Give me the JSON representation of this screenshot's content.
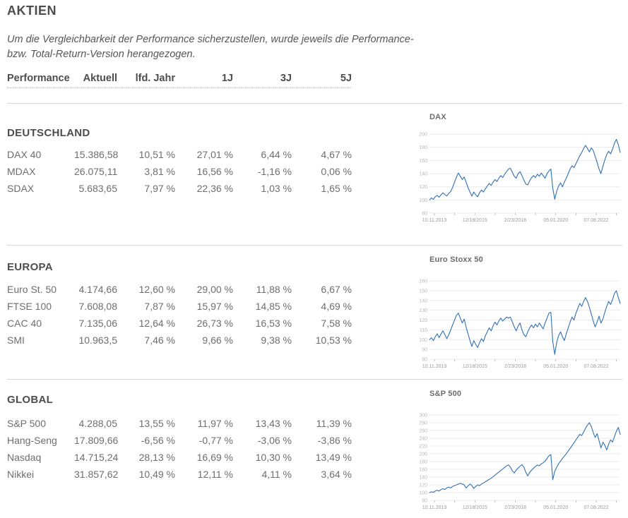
{
  "page": {
    "title": "AKTIEN",
    "subtitle_line1": "Um die Vergleichbarkeit der Performance sicherzustellen, wurde jeweils die Performance-",
    "subtitle_line2": "bzw. Total-Return-Version herangezogen."
  },
  "table": {
    "headers": [
      "Performance",
      "Aktuell",
      "lfd. Jahr",
      "1J",
      "3J",
      "5J"
    ],
    "sections": [
      {
        "heading": "DEUTSCHLAND",
        "rows": [
          {
            "name": "DAX 40",
            "values": [
              "15.386,58",
              "10,51 %",
              "27,01 %",
              "6,44 %",
              "4,67 %"
            ]
          },
          {
            "name": "MDAX",
            "values": [
              "26.075,11",
              "3,81 %",
              "16,56 %",
              "-1,16 %",
              "0,06 %"
            ]
          },
          {
            "name": "SDAX",
            "values": [
              "5.683,65",
              "7,97 %",
              "22,36 %",
              "1,03 %",
              "1,65 %"
            ]
          }
        ]
      },
      {
        "heading": "EUROPA",
        "rows": [
          {
            "name": "Euro St. 50",
            "values": [
              "4.174,66",
              "12,60 %",
              "29,00 %",
              "11,88 %",
              "6,67 %"
            ]
          },
          {
            "name": "FTSE 100",
            "values": [
              "7.608,08",
              "7,87 %",
              "15,97 %",
              "14,85 %",
              "4,69 %"
            ]
          },
          {
            "name": "CAC 40",
            "values": [
              "7.135,06",
              "12,64 %",
              "26,73 %",
              "16,53 %",
              "7,58 %"
            ]
          },
          {
            "name": "SMI",
            "values": [
              "10.963,5",
              "7,46 %",
              "9,66 %",
              "9,38 %",
              "10,53 %"
            ]
          }
        ]
      },
      {
        "heading": "GLOBAL",
        "rows": [
          {
            "name": "S&P 500",
            "values": [
              "4.288,05",
              "13,55 %",
              "11,97 %",
              "13,43 %",
              "11,39 %"
            ]
          },
          {
            "name": "Hang-Seng",
            "values": [
              "17.809,66",
              "-6,56 %",
              "-0,77 %",
              "-3,06 %",
              "-3,86 %"
            ]
          },
          {
            "name": "Nasdaq",
            "values": [
              "14.715,24",
              "28,13 %",
              "16,69 %",
              "10,30 %",
              "13,49 %"
            ]
          },
          {
            "name": "Nikkei",
            "values": [
              "31.857,62",
              "10,49 %",
              "12,11 %",
              "4,11 %",
              "3,64 %"
            ]
          }
        ]
      }
    ]
  },
  "chart_data": [
    {
      "type": "line",
      "title": "DAX",
      "line_color": "#3070b4",
      "ylim": [
        80,
        200
      ],
      "yticks": [
        200,
        180,
        160,
        140,
        120,
        100,
        80
      ],
      "xticklabels": [
        "10.11.2013",
        "12/18/2015",
        "2/23/2018",
        "05.01.2020",
        "07.08.2022"
      ],
      "grid": true,
      "legend": "none",
      "values": [
        100,
        103,
        101,
        105,
        107,
        104,
        108,
        111,
        108,
        106,
        110,
        113,
        119,
        127,
        135,
        141,
        136,
        131,
        135,
        127,
        119,
        112,
        106,
        112,
        108,
        105,
        111,
        115,
        112,
        117,
        121,
        125,
        122,
        127,
        131,
        128,
        133,
        137,
        134,
        139,
        143,
        147,
        148,
        142,
        136,
        133,
        140,
        143,
        137,
        130,
        124,
        123,
        129,
        134,
        137,
        134,
        139,
        136,
        141,
        137,
        133,
        140,
        144,
        147,
        118,
        101,
        113,
        121,
        126,
        120,
        127,
        133,
        140,
        147,
        152,
        149,
        155,
        161,
        167,
        172,
        178,
        183,
        178,
        173,
        179,
        175,
        166,
        157,
        147,
        140,
        151,
        161,
        169,
        174,
        170,
        177,
        186,
        192,
        184,
        172
      ]
    },
    {
      "type": "line",
      "title": "Euro Stoxx 50",
      "line_color": "#3070b4",
      "ylim": [
        80,
        160
      ],
      "yticks": [
        160,
        150,
        140,
        130,
        120,
        110,
        100,
        90,
        80
      ],
      "xticklabels": [
        "10.11.2013",
        "12/18/2015",
        "2/23/2018",
        "05.01.2020",
        "07.08.2022"
      ],
      "grid": true,
      "legend": "none",
      "values": [
        100,
        102,
        99,
        103,
        106,
        102,
        106,
        109,
        105,
        101,
        105,
        110,
        115,
        120,
        125,
        127,
        122,
        117,
        121,
        113,
        106,
        99,
        93,
        99,
        95,
        92,
        97,
        101,
        98,
        104,
        108,
        112,
        109,
        114,
        118,
        115,
        119,
        122,
        119,
        121,
        123,
        122,
        123,
        118,
        113,
        109,
        114,
        117,
        110,
        105,
        103,
        108,
        112,
        115,
        112,
        116,
        113,
        117,
        114,
        111,
        117,
        122,
        127,
        128,
        98,
        85,
        97,
        104,
        108,
        103,
        99,
        106,
        112,
        118,
        123,
        120,
        127,
        132,
        137,
        134,
        139,
        143,
        139,
        133,
        126,
        119,
        113,
        118,
        124,
        117,
        121,
        128,
        134,
        139,
        136,
        141,
        147,
        150,
        143,
        137
      ]
    },
    {
      "type": "line",
      "title": "S&P 500",
      "line_color": "#3070b4",
      "ylim": [
        80,
        300
      ],
      "yticks": [
        300,
        280,
        260,
        240,
        220,
        200,
        180,
        160,
        140,
        120,
        100,
        80
      ],
      "xticklabels": [
        "10.11.2013",
        "12/18/2015",
        "2/23/2018",
        "05.01.2020",
        "07.08.2022"
      ],
      "grid": true,
      "legend": "none",
      "values": [
        100,
        102,
        101,
        104,
        106,
        104,
        108,
        110,
        108,
        112,
        114,
        112,
        116,
        118,
        120,
        122,
        124,
        122,
        120,
        112,
        117,
        122,
        118,
        111,
        116,
        120,
        118,
        122,
        125,
        128,
        131,
        134,
        137,
        141,
        145,
        149,
        153,
        157,
        161,
        165,
        169,
        171,
        166,
        156,
        151,
        158,
        163,
        168,
        172,
        166,
        152,
        143,
        152,
        158,
        163,
        167,
        171,
        169,
        174,
        177,
        181,
        188,
        195,
        198,
        133,
        155,
        165,
        174,
        181,
        188,
        194,
        200,
        207,
        214,
        221,
        228,
        236,
        243,
        250,
        247,
        256,
        266,
        274,
        280,
        270,
        255,
        242,
        252,
        234,
        215,
        230,
        222,
        210,
        225,
        236,
        230,
        244,
        258,
        268,
        250
      ]
    }
  ]
}
